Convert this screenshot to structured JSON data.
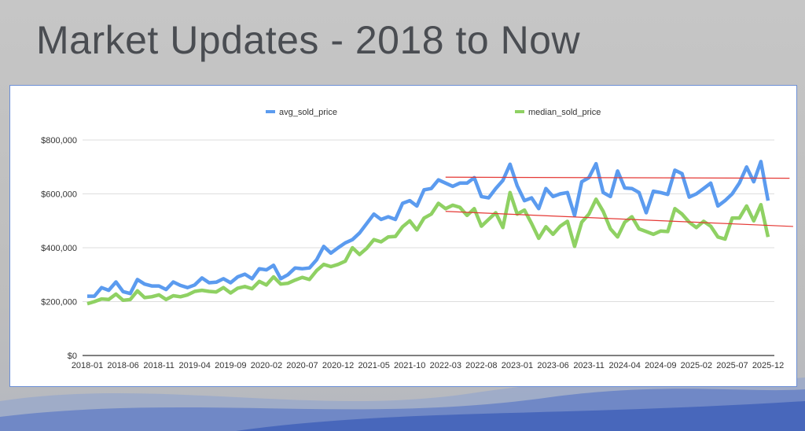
{
  "slide": {
    "title": "Market Updates - 2018 to Now"
  },
  "chart_data": {
    "type": "line",
    "title": "",
    "xlabel": "",
    "ylabel": "",
    "ylim": [
      0,
      800000
    ],
    "yticks": [
      0,
      200000,
      400000,
      600000,
      800000
    ],
    "ytick_labels": [
      "$0",
      "$200,000",
      "$400,000",
      "$600,000",
      "$800,000"
    ],
    "grid": true,
    "legend_position": "top",
    "x_start": "2018-01",
    "x_end": "2025-12",
    "x_tick_every_months": 5,
    "xtick_labels": [
      "2018-01",
      "2018-06",
      "2018-11",
      "2019-04",
      "2019-09",
      "2020-02",
      "2020-07",
      "2020-12",
      "2021-05",
      "2021-10",
      "2022-03",
      "2022-08",
      "2023-01",
      "2023-06",
      "2023-11",
      "2024-04",
      "2024-09",
      "2025-02",
      "2025-07",
      "2025-12"
    ],
    "series": [
      {
        "name": "avg_sold_price",
        "color": "#5b9bef",
        "values": [
          220000,
          220000,
          252000,
          242000,
          273000,
          237000,
          230000,
          282000,
          265000,
          258000,
          258000,
          245000,
          273000,
          260000,
          252000,
          262000,
          288000,
          270000,
          272000,
          285000,
          270000,
          292000,
          302000,
          285000,
          322000,
          318000,
          335000,
          285000,
          300000,
          325000,
          322000,
          325000,
          355000,
          405000,
          380000,
          400000,
          418000,
          430000,
          455000,
          490000,
          525000,
          505000,
          515000,
          505000,
          565000,
          575000,
          555000,
          615000,
          620000,
          652000,
          640000,
          628000,
          640000,
          640000,
          660000,
          590000,
          585000,
          620000,
          650000,
          710000,
          630000,
          575000,
          585000,
          545000,
          620000,
          590000,
          600000,
          605000,
          520000,
          645000,
          660000,
          712000,
          605000,
          590000,
          685000,
          622000,
          620000,
          605000,
          530000,
          610000,
          605000,
          598000,
          688000,
          675000,
          588000,
          600000,
          620000,
          640000,
          555000,
          575000,
          600000,
          640000,
          700000,
          645000,
          720000,
          575000
        ]
      },
      {
        "name": "median_sold_price",
        "color": "#8fd163",
        "values": [
          192000,
          200000,
          210000,
          208000,
          228000,
          205000,
          208000,
          240000,
          215000,
          218000,
          225000,
          208000,
          222000,
          218000,
          225000,
          238000,
          242000,
          238000,
          236000,
          252000,
          232000,
          250000,
          256000,
          248000,
          275000,
          262000,
          292000,
          265000,
          268000,
          280000,
          290000,
          282000,
          315000,
          338000,
          330000,
          338000,
          350000,
          400000,
          375000,
          398000,
          430000,
          422000,
          440000,
          442000,
          478000,
          500000,
          466000,
          510000,
          525000,
          565000,
          545000,
          558000,
          550000,
          520000,
          545000,
          480000,
          505000,
          530000,
          475000,
          605000,
          525000,
          540000,
          490000,
          435000,
          478000,
          450000,
          480000,
          498000,
          405000,
          495000,
          525000,
          580000,
          535000,
          470000,
          440000,
          495000,
          515000,
          470000,
          460000,
          450000,
          462000,
          460000,
          545000,
          525000,
          495000,
          475000,
          498000,
          480000,
          440000,
          432000,
          510000,
          510000,
          555000,
          500000,
          560000,
          440000
        ]
      }
    ],
    "trendlines": [
      {
        "color": "#e53935",
        "from_month_index": 50,
        "to_month_index": 98,
        "start_value": 662000,
        "end_value": 658000
      },
      {
        "color": "#e53935",
        "from_month_index": 50,
        "to_month_index": 98.5,
        "start_value": 535000,
        "end_value": 479000
      }
    ]
  }
}
